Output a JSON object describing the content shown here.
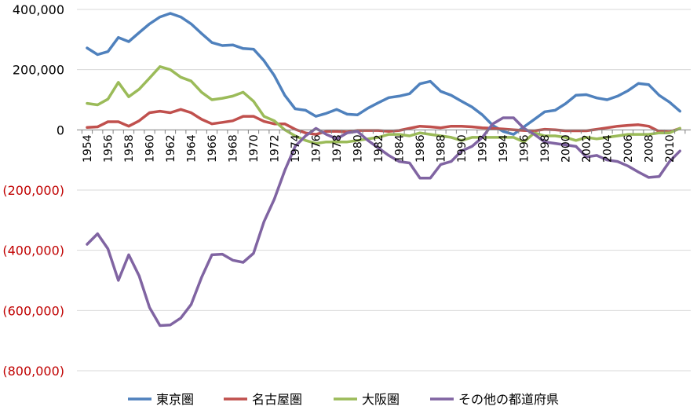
{
  "chart_data": {
    "type": "line",
    "ylim": [
      -800000,
      400000
    ],
    "yticks": [
      400000,
      200000,
      0,
      -200000,
      -400000,
      -600000,
      -800000
    ],
    "ytick_labels": [
      "400,000",
      "200,000",
      "0",
      "(200,000)",
      "(400,000)",
      "(600,000)",
      "(800,000)"
    ],
    "negative_label_color": "#c00000",
    "x": [
      1954,
      1955,
      1956,
      1957,
      1958,
      1959,
      1960,
      1961,
      1962,
      1963,
      1964,
      1965,
      1966,
      1967,
      1968,
      1969,
      1970,
      1971,
      1972,
      1973,
      1974,
      1975,
      1976,
      1977,
      1978,
      1979,
      1980,
      1981,
      1982,
      1983,
      1984,
      1985,
      1986,
      1987,
      1988,
      1989,
      1990,
      1991,
      1992,
      1993,
      1994,
      1995,
      1996,
      1997,
      1998,
      1999,
      2000,
      2001,
      2002,
      2003,
      2004,
      2005,
      2006,
      2007,
      2008,
      2009,
      2010,
      2011
    ],
    "xtick_labels": [
      "1954",
      "1956",
      "1958",
      "1960",
      "1962",
      "1964",
      "1966",
      "1968",
      "1970",
      "1972",
      "1974",
      "1976",
      "1978",
      "1980",
      "1982",
      "1984",
      "1986",
      "1988",
      "1990",
      "1992",
      "1994",
      "1996",
      "1998",
      "2000",
      "2002",
      "2004",
      "2006",
      "2008",
      "2010"
    ],
    "grid": true,
    "legend_position": "bottom",
    "series": [
      {
        "name": "東京圏",
        "color": "#4f81bd",
        "values": [
          272000,
          250000,
          260000,
          307000,
          293000,
          323000,
          352000,
          375000,
          387000,
          375000,
          352000,
          320000,
          290000,
          280000,
          282000,
          270000,
          268000,
          230000,
          180000,
          115000,
          70000,
          65000,
          45000,
          55000,
          68000,
          52000,
          50000,
          72000,
          90000,
          107000,
          112000,
          120000,
          153000,
          161000,
          128000,
          115000,
          95000,
          76000,
          50000,
          15000,
          -5000,
          -15000,
          10000,
          35000,
          60000,
          65000,
          87000,
          115000,
          117000,
          106000,
          100000,
          112000,
          130000,
          154000,
          150000,
          115000,
          92000,
          62000
        ]
      },
      {
        "name": "名古屋圏",
        "color": "#c0504d",
        "values": [
          8000,
          10000,
          27000,
          27000,
          12000,
          30000,
          57000,
          62000,
          57000,
          68000,
          57000,
          35000,
          20000,
          25000,
          30000,
          45000,
          45000,
          28000,
          20000,
          20000,
          2000,
          -10000,
          -15000,
          -5000,
          -5000,
          -7000,
          -2000,
          -2000,
          -2000,
          -5000,
          -2000,
          5000,
          12000,
          10000,
          7000,
          12000,
          12000,
          10000,
          7000,
          5000,
          3000,
          0,
          -2000,
          -3000,
          2000,
          0,
          -3000,
          -3000,
          -3000,
          2000,
          7000,
          12000,
          15000,
          17000,
          12000,
          -5000,
          -7000,
          5000
        ]
      },
      {
        "name": "大阪圏",
        "color": "#9bbb59",
        "values": [
          88000,
          83000,
          102000,
          158000,
          110000,
          135000,
          172000,
          210000,
          200000,
          175000,
          162000,
          125000,
          100000,
          105000,
          112000,
          125000,
          95000,
          45000,
          30000,
          0,
          -20000,
          -35000,
          -45000,
          -40000,
          -40000,
          -40000,
          -35000,
          -30000,
          -25000,
          -15000,
          -15000,
          -20000,
          -10000,
          -15000,
          -20000,
          -25000,
          -35000,
          -25000,
          -25000,
          -25000,
          -25000,
          -25000,
          -40000,
          -10000,
          -20000,
          -20000,
          -25000,
          -35000,
          -25000,
          -30000,
          -25000,
          -20000,
          -15000,
          -15000,
          -15000,
          -10000,
          -10000,
          5000
        ]
      },
      {
        "name": "その他の都道府県",
        "color": "#8064a2",
        "values": [
          -380000,
          -345000,
          -395000,
          -500000,
          -415000,
          -485000,
          -590000,
          -650000,
          -648000,
          -625000,
          -580000,
          -490000,
          -415000,
          -413000,
          -433000,
          -440000,
          -410000,
          -305000,
          -230000,
          -135000,
          -55000,
          -20000,
          5000,
          -15000,
          -30000,
          -10000,
          -5000,
          -35000,
          -60000,
          -85000,
          -105000,
          -110000,
          -160000,
          -160000,
          -115000,
          -105000,
          -70000,
          -55000,
          -25000,
          20000,
          40000,
          40000,
          5000,
          -15000,
          -40000,
          -45000,
          -50000,
          -55000,
          -90000,
          -85000,
          -100000,
          -105000,
          -120000,
          -140000,
          -158000,
          -155000,
          -105000,
          -70000
        ]
      }
    ]
  }
}
